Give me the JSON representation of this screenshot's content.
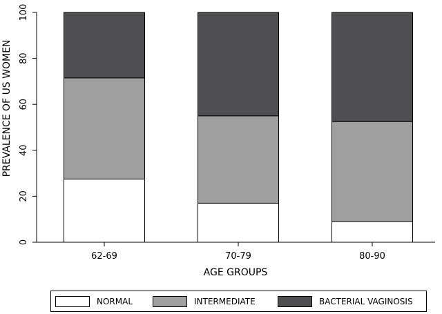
{
  "chart_data": {
    "type": "bar",
    "stacked": true,
    "categories": [
      "62-69",
      "70-79",
      "80-90"
    ],
    "series": [
      {
        "name": "NORMAL",
        "color": "#ffffff",
        "values": [
          27.5,
          17,
          9
        ]
      },
      {
        "name": "INTERMEDIATE",
        "color": "#a0a0a0",
        "values": [
          44,
          38,
          43.5
        ]
      },
      {
        "name": "BACTERIAL VAGINOSIS",
        "color": "#4f4f51",
        "values": [
          28.5,
          45,
          47.5
        ]
      }
    ],
    "xlabel": "AGE GROUPS",
    "ylabel": "PREVALENCE OF US WOMEN",
    "ylim": [
      0,
      100
    ],
    "yticks": [
      "0",
      "20",
      "40",
      "60",
      "80",
      "100"
    ],
    "legend_position": "bottom"
  }
}
